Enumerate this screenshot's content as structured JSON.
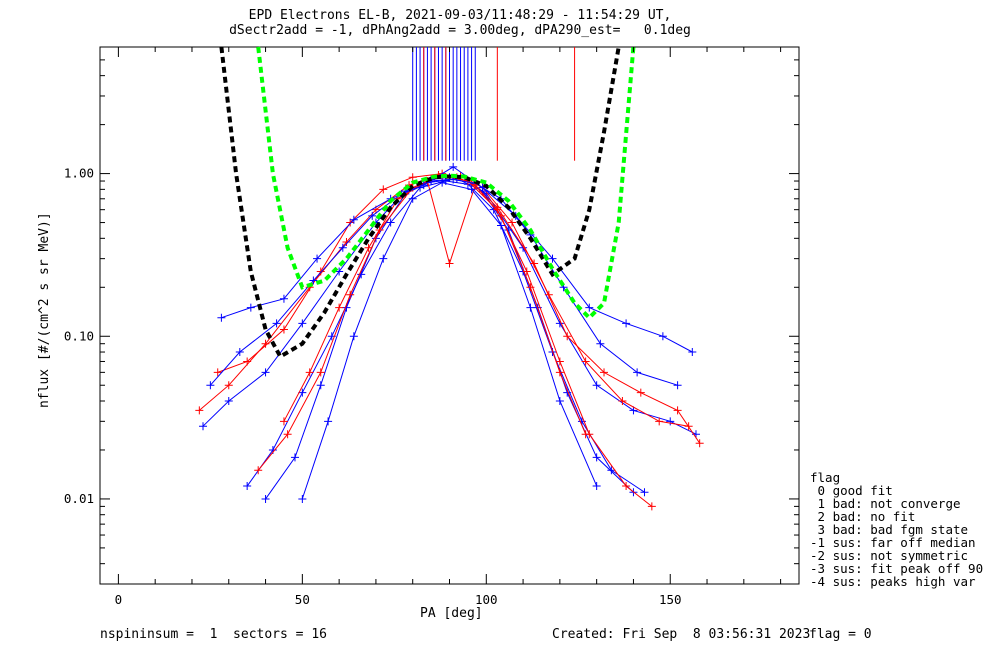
{
  "header": {
    "title_line1": "EPD Electrons EL-B, 2021-09-03/11:48:29 - 11:54:29 UT,",
    "title_line2": "dSectr2add = -1, dPhAng2add = 3.00deg, dPA290_est=   0.1deg"
  },
  "footer": {
    "left": "nspininsum =  1  sectors = 16",
    "created": "Created: Fri Sep  8 03:56:31 2023",
    "flag": "flag = 0"
  },
  "legend": {
    "title": "flag",
    "items": [
      " 0 good fit",
      " 1 bad: not converge",
      " 2 bad: no fit",
      " 3 bad: bad fgm state",
      "-1 sus: far off median",
      "-2 sus: not symmetric",
      "-3 sus: fit peak off 90",
      "-4 sus: peaks high var"
    ]
  },
  "chart_data": {
    "type": "line",
    "title": "EPD Electrons EL-B, 2021-09-03/11:48:29 - 11:54:29 UT,",
    "subtitle": "dSectr2add = -1, dPhAng2add = 3.00deg, dPA290_est=   0.1deg",
    "xlabel": "PA [deg]",
    "ylabel": "nflux [#/(cm^2 s sr MeV)]",
    "xlim": [
      -5,
      185
    ],
    "ylim": [
      0.003,
      6
    ],
    "ylog": true,
    "xticks": [
      0,
      50,
      100,
      150
    ],
    "xticklabels": [
      "0",
      "50",
      "100",
      "150"
    ],
    "yticks": [
      0.01,
      0.1,
      1.0
    ],
    "yticklabels": [
      "0.01",
      "0.10",
      "1.00"
    ],
    "grid": false,
    "colors": {
      "red_traces": "#ff0000",
      "blue_traces": "#0000ff",
      "fit_black": "#000000",
      "fit_green": "#00ff00"
    },
    "series": [
      {
        "color": "#0000ff",
        "x": [
          23,
          30,
          40,
          50,
          60,
          70,
          78,
          85,
          90,
          95,
          100,
          110,
          120,
          130,
          140,
          150,
          157
        ],
        "y": [
          0.028,
          0.04,
          0.06,
          0.12,
          0.25,
          0.5,
          0.78,
          0.92,
          0.95,
          0.9,
          0.75,
          0.35,
          0.12,
          0.05,
          0.035,
          0.03,
          0.025
        ]
      },
      {
        "color": "#ff0000",
        "x": [
          27,
          35,
          45,
          55,
          63,
          72,
          80,
          88,
          92,
          97,
          103,
          113,
          122,
          132,
          142,
          152,
          158
        ],
        "y": [
          0.06,
          0.07,
          0.11,
          0.25,
          0.5,
          0.8,
          0.95,
          1.0,
          0.95,
          0.85,
          0.62,
          0.28,
          0.1,
          0.06,
          0.045,
          0.035,
          0.022
        ]
      },
      {
        "color": "#0000ff",
        "x": [
          35,
          42,
          50,
          58,
          66,
          74,
          82,
          89,
          95,
          102,
          110,
          118,
          126,
          134,
          143
        ],
        "y": [
          0.012,
          0.02,
          0.045,
          0.1,
          0.24,
          0.5,
          0.82,
          0.9,
          0.86,
          0.6,
          0.25,
          0.08,
          0.03,
          0.015,
          0.011
        ]
      },
      {
        "color": "#ff0000",
        "x": [
          22,
          30,
          40,
          52,
          62,
          70,
          79,
          87,
          93,
          99,
          107,
          117,
          127,
          137,
          147,
          155
        ],
        "y": [
          0.035,
          0.05,
          0.09,
          0.2,
          0.38,
          0.6,
          0.85,
          0.98,
          0.97,
          0.82,
          0.5,
          0.18,
          0.07,
          0.04,
          0.03,
          0.028
        ]
      },
      {
        "color": "#0000ff",
        "x": [
          40,
          48,
          55,
          62,
          70,
          78,
          85,
          92,
          99,
          106,
          114,
          122,
          130,
          140
        ],
        "y": [
          0.01,
          0.018,
          0.05,
          0.15,
          0.4,
          0.75,
          0.9,
          0.93,
          0.78,
          0.45,
          0.15,
          0.045,
          0.018,
          0.011
        ]
      },
      {
        "color": "#ff0000",
        "x": [
          38,
          46,
          55,
          63,
          71,
          80,
          88,
          95,
          103,
          111,
          120,
          128,
          138,
          145
        ],
        "y": [
          0.015,
          0.025,
          0.06,
          0.18,
          0.45,
          0.82,
          0.97,
          0.9,
          0.6,
          0.25,
          0.07,
          0.025,
          0.012,
          0.009
        ]
      },
      {
        "color": "#0000ff",
        "x": [
          25,
          33,
          43,
          53,
          61,
          69,
          77,
          84,
          91,
          97,
          104,
          112,
          121,
          131,
          141,
          152
        ],
        "y": [
          0.05,
          0.08,
          0.12,
          0.22,
          0.35,
          0.55,
          0.75,
          0.88,
          0.92,
          0.87,
          0.7,
          0.42,
          0.2,
          0.09,
          0.06,
          0.05
        ]
      },
      {
        "color": "#ff0000",
        "x": [
          45,
          52,
          60,
          68,
          76,
          84,
          90,
          97,
          104,
          112,
          120,
          127
        ],
        "y": [
          0.03,
          0.06,
          0.15,
          0.35,
          0.7,
          0.9,
          0.28,
          0.85,
          0.55,
          0.2,
          0.06,
          0.025
        ]
      },
      {
        "color": "#0000ff",
        "x": [
          28,
          36,
          45,
          54,
          64,
          74,
          83,
          91,
          99,
          108,
          118,
          128,
          138,
          148,
          156
        ],
        "y": [
          0.13,
          0.15,
          0.17,
          0.3,
          0.52,
          0.7,
          0.85,
          1.1,
          0.82,
          0.55,
          0.3,
          0.15,
          0.12,
          0.1,
          0.08
        ]
      },
      {
        "color": "#0000ff",
        "x": [
          50,
          57,
          64,
          72,
          80,
          88,
          96,
          104,
          112,
          120,
          130
        ],
        "y": [
          0.01,
          0.03,
          0.1,
          0.3,
          0.7,
          0.88,
          0.8,
          0.48,
          0.15,
          0.04,
          0.012
        ]
      }
    ],
    "fits": [
      {
        "color": "#000000",
        "style": "dashed",
        "x": [
          28,
          32,
          36,
          40,
          44,
          50,
          56,
          62,
          68,
          74,
          80,
          86,
          90,
          94,
          100,
          106,
          112,
          118,
          124,
          128,
          132,
          136
        ],
        "y": [
          6,
          1.0,
          0.25,
          0.11,
          0.075,
          0.09,
          0.14,
          0.24,
          0.4,
          0.62,
          0.84,
          0.95,
          0.96,
          0.95,
          0.84,
          0.62,
          0.4,
          0.24,
          0.3,
          0.6,
          1.8,
          6
        ]
      },
      {
        "color": "#00ff00",
        "style": "dashed",
        "x": [
          38,
          42,
          46,
          50,
          56,
          62,
          68,
          74,
          80,
          86,
          90,
          94,
          100,
          106,
          112,
          118,
          124,
          128,
          132,
          136,
          140
        ],
        "y": [
          6,
          1.0,
          0.35,
          0.2,
          0.22,
          0.3,
          0.45,
          0.68,
          0.88,
          0.96,
          0.97,
          0.96,
          0.88,
          0.68,
          0.45,
          0.26,
          0.16,
          0.13,
          0.16,
          0.5,
          6
        ]
      }
    ],
    "peak_markers": {
      "blue_x": [
        80,
        81,
        82,
        83,
        84,
        85,
        86,
        87,
        88,
        89,
        90,
        91,
        92,
        93,
        94,
        95,
        96,
        97
      ],
      "red_x": [
        83,
        86,
        89,
        103,
        124
      ],
      "y_top": 6,
      "y_bottom": 1.2
    }
  }
}
